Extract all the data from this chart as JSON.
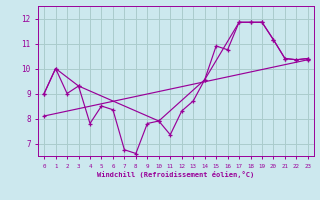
{
  "xlabel": "Windchill (Refroidissement éolien,°C)",
  "background_color": "#cce8ee",
  "grid_color": "#aacccc",
  "line_color": "#990099",
  "xlim": [
    -0.5,
    23.5
  ],
  "ylim": [
    6.5,
    12.5
  ],
  "yticks": [
    7,
    8,
    9,
    10,
    11,
    12
  ],
  "xticks": [
    0,
    1,
    2,
    3,
    4,
    5,
    6,
    7,
    8,
    9,
    10,
    11,
    12,
    13,
    14,
    15,
    16,
    17,
    18,
    19,
    20,
    21,
    22,
    23
  ],
  "line1_x": [
    0,
    1,
    2,
    3,
    4,
    5,
    6,
    7,
    8,
    9,
    10,
    11,
    12,
    13,
    14,
    15,
    16,
    17,
    18,
    19,
    20,
    21,
    22,
    23
  ],
  "line1_y": [
    9.0,
    10.0,
    9.0,
    9.3,
    7.8,
    8.5,
    8.35,
    6.75,
    6.6,
    7.8,
    7.9,
    7.35,
    8.3,
    8.7,
    9.55,
    10.9,
    10.75,
    11.85,
    11.85,
    11.85,
    11.15,
    10.4,
    10.35,
    10.4
  ],
  "line2_x": [
    0,
    1,
    3,
    10,
    14,
    17,
    18,
    19,
    20,
    21,
    22,
    23
  ],
  "line2_y": [
    9.0,
    10.0,
    9.3,
    7.9,
    9.55,
    11.85,
    11.85,
    11.85,
    11.15,
    10.4,
    10.35,
    10.4
  ],
  "line3_x": [
    0,
    23
  ],
  "line3_y": [
    8.1,
    10.35
  ]
}
